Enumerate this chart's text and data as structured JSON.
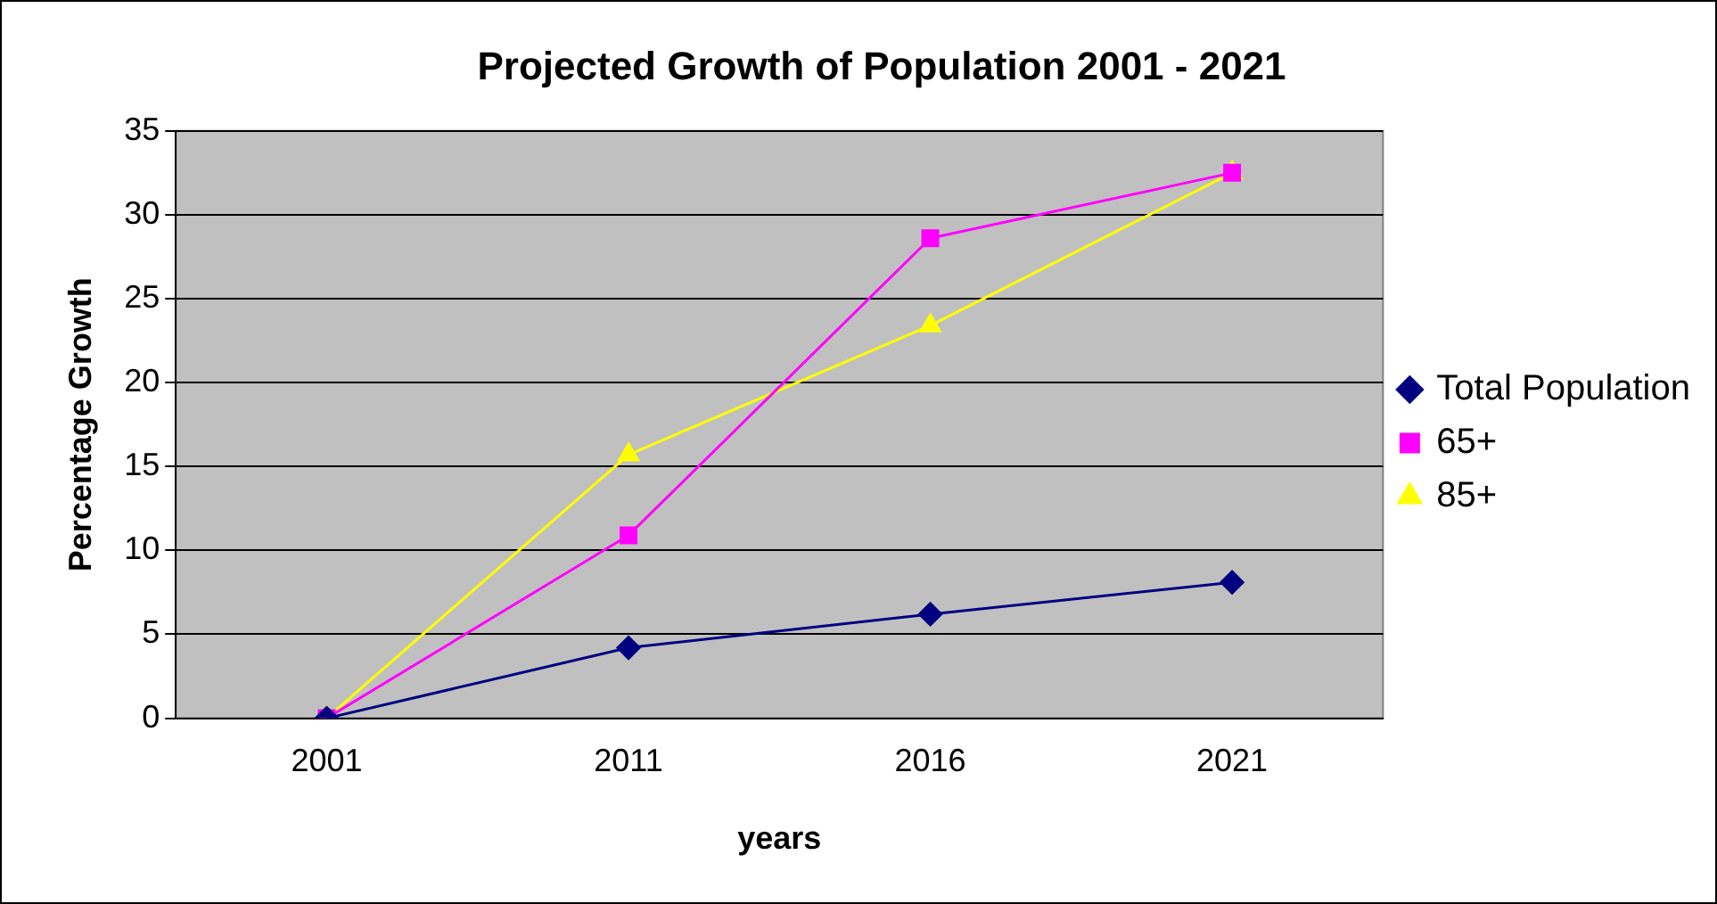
{
  "chart_data": {
    "type": "line",
    "title": "Projected Growth of Population 2001 - 2021",
    "xlabel": "years",
    "ylabel": "Percentage Growth",
    "categories": [
      "2001",
      "2011",
      "2016",
      "2021"
    ],
    "series": [
      {
        "name": "Total Population",
        "color": "#000080",
        "marker": "diamond",
        "values": [
          0,
          4.2,
          6.2,
          8.1
        ]
      },
      {
        "name": "65+",
        "color": "#ff00ff",
        "marker": "square",
        "values": [
          0,
          10.9,
          28.6,
          32.5
        ]
      },
      {
        "name": "85+",
        "color": "#ffff00",
        "marker": "triangle",
        "values": [
          0,
          15.7,
          23.4,
          32.5
        ]
      }
    ],
    "ylim": [
      0,
      35
    ],
    "yticks": [
      0,
      5,
      10,
      15,
      20,
      25,
      30,
      35
    ],
    "grid": "y",
    "legend": "right",
    "line_style": "solid"
  }
}
